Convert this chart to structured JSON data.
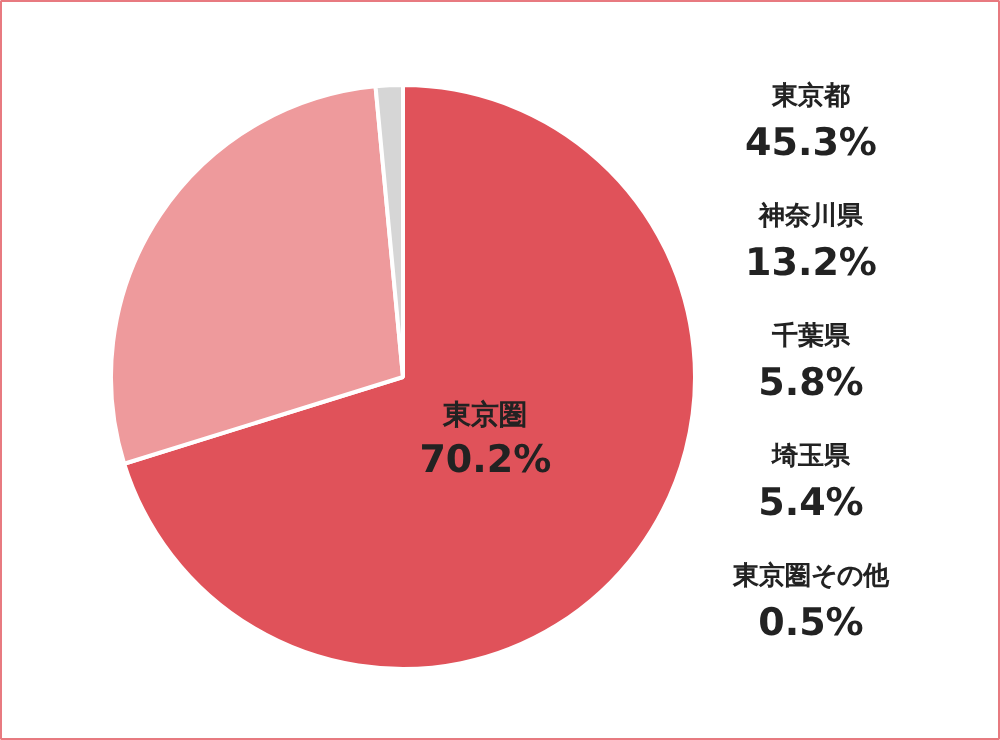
{
  "chart_data": {
    "type": "pie",
    "categories": [
      "東京圏",
      null,
      null
    ],
    "values": [
      70.2,
      28.3,
      1.5
    ],
    "colors": [
      "#e0525a",
      "#ee9a9c",
      "#d6d6d6"
    ],
    "value_labels": [
      "70.2%",
      null,
      null
    ],
    "annotations": [
      "東京都",
      "45.3%",
      "神奈川県",
      "13.2%",
      "千葉県",
      "5.8%",
      "埼玉県",
      "5.4%",
      "東京圏その他",
      "0.5%"
    ]
  }
}
